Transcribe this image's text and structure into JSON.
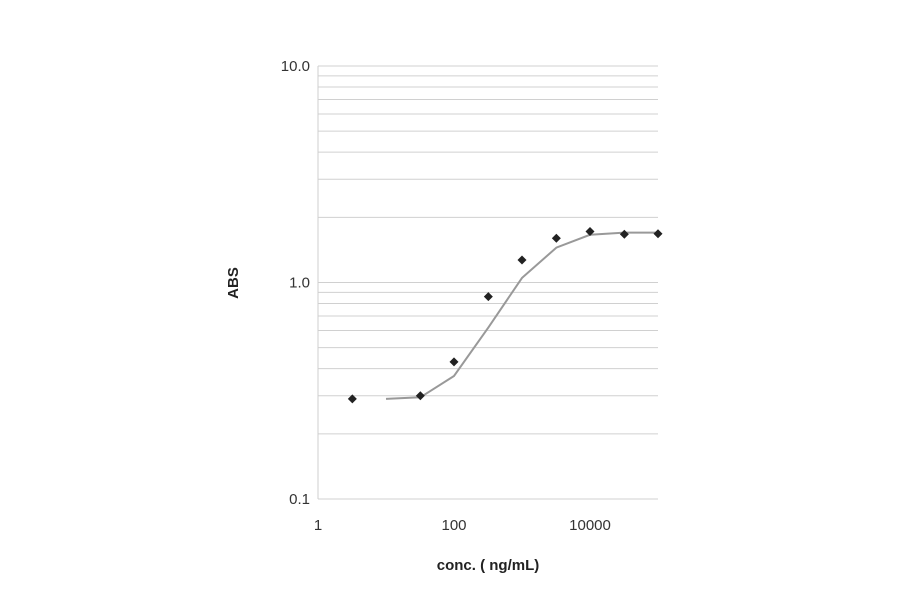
{
  "chart_data": {
    "type": "scatter",
    "title": "",
    "xlabel": "conc. ( ng/mL)",
    "ylabel": "ABS",
    "x_scale": "log",
    "y_scale": "log",
    "xlim": [
      1,
      100000
    ],
    "ylim": [
      0.1,
      10
    ],
    "x_ticks": [
      {
        "value": 1,
        "label": "1"
      },
      {
        "value": 100,
        "label": "100"
      },
      {
        "value": 10000,
        "label": "10000"
      }
    ],
    "y_ticks": [
      {
        "value": 0.1,
        "label": "0.1"
      },
      {
        "value": 1,
        "label": "1.0"
      },
      {
        "value": 10,
        "label": "10.0"
      }
    ],
    "grid": {
      "horizontal_minor": true,
      "vertical": false
    },
    "legend": "none",
    "marker_color": "#222222",
    "line_color": "#999999",
    "grid_color": "#d0d0d0",
    "series": [
      {
        "kind": "points",
        "marker": "diamond",
        "x": [
          3.2,
          32,
          100,
          320,
          1000,
          3200,
          10000,
          32000,
          100000
        ],
        "y": [
          0.29,
          0.3,
          0.43,
          0.86,
          1.27,
          1.6,
          1.72,
          1.67,
          1.68
        ]
      },
      {
        "kind": "fit-line",
        "x": [
          10,
          32,
          100,
          320,
          1000,
          3200,
          10000,
          32000,
          100000
        ],
        "y": [
          0.29,
          0.295,
          0.37,
          0.62,
          1.05,
          1.45,
          1.66,
          1.7,
          1.7
        ]
      }
    ]
  }
}
